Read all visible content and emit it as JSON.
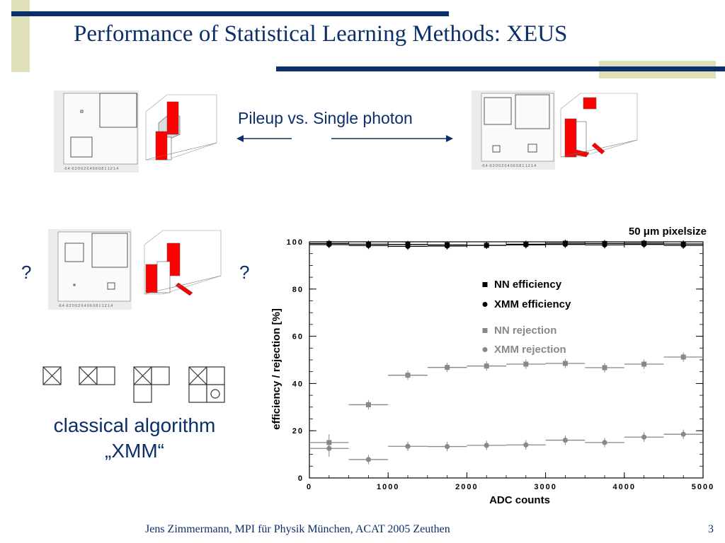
{
  "slide": {
    "title": "Performance of Statistical Learning Methods: XEUS",
    "pileup_label": "Pileup vs. Single photon",
    "question_left": "?",
    "question_right": "?",
    "classical_line1": "classical algorithm",
    "classical_line2": "„XMM“",
    "footer": "Jens Zimmermann, MPI für Physik München, ACAT 2005 Zeuthen",
    "page_number": "3",
    "colors": {
      "navy": "#0a2f6a",
      "olive": "#e0e0b8",
      "red": "#ff0000",
      "gray_marker": "#888888"
    }
  },
  "chart_data": {
    "type": "scatter",
    "title": "50 μm pixelsize",
    "xlabel": "ADC counts",
    "ylabel": "efficiency / rejection [%]",
    "xlim": [
      0,
      5000
    ],
    "ylim": [
      0,
      100
    ],
    "x_ticks": [
      "0",
      "1000",
      "2000",
      "3000",
      "4000",
      "5000"
    ],
    "y_ticks": [
      "0",
      "20",
      "40",
      "60",
      "80",
      "100"
    ],
    "legend_position": "right",
    "x": [
      250,
      750,
      1250,
      1750,
      2250,
      2750,
      3250,
      3750,
      4250,
      4750
    ],
    "x_error": 250,
    "series": [
      {
        "name": "NN efficiency",
        "marker": "square",
        "color": "#000000",
        "values": [
          99.3,
          99.0,
          98.9,
          98.7,
          98.5,
          99.0,
          99.4,
          99.3,
          99.4,
          99.1
        ]
      },
      {
        "name": "XMM efficiency",
        "marker": "circle",
        "color": "#000000",
        "values": [
          98.8,
          98.4,
          98.1,
          98.2,
          98.5,
          98.7,
          98.9,
          98.7,
          98.9,
          98.5
        ]
      },
      {
        "name": "NN rejection",
        "marker": "square",
        "color": "#888888",
        "values": [
          15.0,
          31.0,
          43.5,
          46.8,
          47.4,
          48.2,
          48.5,
          46.7,
          48.2,
          51.2
        ]
      },
      {
        "name": "XMM rejection",
        "marker": "circle",
        "color": "#888888",
        "values": [
          12.5,
          7.8,
          13.4,
          13.3,
          13.8,
          14.0,
          16.0,
          15.0,
          17.3,
          18.5
        ]
      }
    ]
  }
}
